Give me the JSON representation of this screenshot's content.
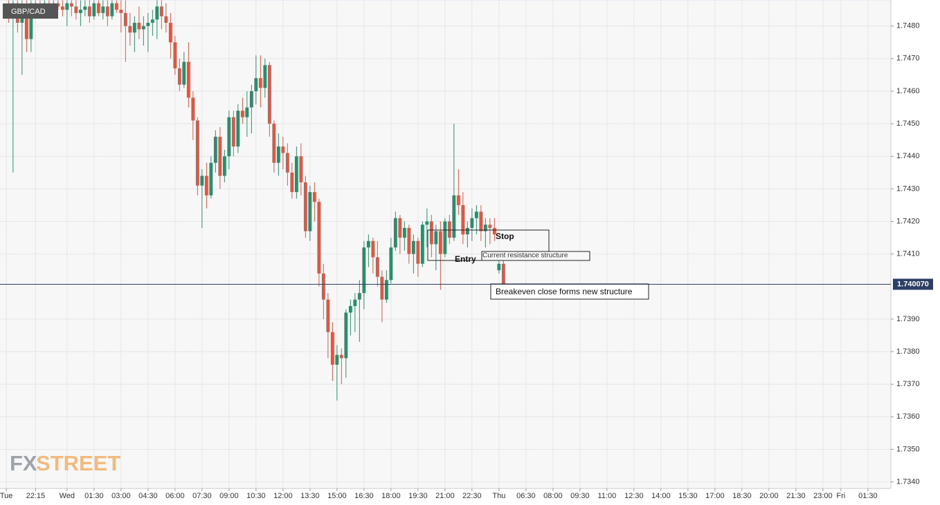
{
  "chart_data": {
    "type": "candlestick",
    "symbol": "GBP/CAD",
    "watermark": [
      "FX",
      "STREET"
    ],
    "up_color": "#2e8c6c",
    "down_color": "#d65a48",
    "grid": true,
    "ylim": [
      1.7338,
      1.7488
    ],
    "yticks": [
      {
        "value": 1.734,
        "label": "1.7340"
      },
      {
        "value": 1.735,
        "label": "1.7350"
      },
      {
        "value": 1.736,
        "label": "1.7360"
      },
      {
        "value": 1.737,
        "label": "1.7370"
      },
      {
        "value": 1.738,
        "label": "1.7380"
      },
      {
        "value": 1.739,
        "label": "1.7390"
      },
      {
        "value": 1.741,
        "label": "1.7410"
      },
      {
        "value": 1.742,
        "label": "1.7420"
      },
      {
        "value": 1.743,
        "label": "1.7430"
      },
      {
        "value": 1.744,
        "label": "1.7440"
      },
      {
        "value": 1.745,
        "label": "1.7450"
      },
      {
        "value": 1.746,
        "label": "1.7460"
      },
      {
        "value": 1.747,
        "label": "1.7470"
      },
      {
        "value": 1.748,
        "label": "1.7480"
      }
    ],
    "last_price": {
      "value": 1.74007,
      "label": "1.740070"
    },
    "xlim": [
      -14.9,
      183.1
    ],
    "xticks": [
      {
        "value": -13.5,
        "label": "Tue"
      },
      {
        "value": -7,
        "label": "22:15"
      },
      {
        "value": 0,
        "label": "Wed"
      },
      {
        "value": 6,
        "label": "01:30"
      },
      {
        "value": 12,
        "label": "03:00"
      },
      {
        "value": 18,
        "label": "04:30"
      },
      {
        "value": 24,
        "label": "06:00"
      },
      {
        "value": 30,
        "label": "07:30"
      },
      {
        "value": 36,
        "label": "09:00"
      },
      {
        "value": 42,
        "label": "10:30"
      },
      {
        "value": 48,
        "label": "12:00"
      },
      {
        "value": 54,
        "label": "13:30"
      },
      {
        "value": 60,
        "label": "15:00"
      },
      {
        "value": 66,
        "label": "16:30"
      },
      {
        "value": 72,
        "label": "18:00"
      },
      {
        "value": 78,
        "label": "19:30"
      },
      {
        "value": 84,
        "label": "21:00"
      },
      {
        "value": 90,
        "label": "22:30"
      },
      {
        "value": 96,
        "label": "Thu"
      },
      {
        "value": 102,
        "label": "06:30"
      },
      {
        "value": 108,
        "label": "08:00"
      },
      {
        "value": 114,
        "label": "09:30"
      },
      {
        "value": 120,
        "label": "11:00"
      },
      {
        "value": 126,
        "label": "12:30"
      },
      {
        "value": 132,
        "label": "14:00"
      },
      {
        "value": 138,
        "label": "15:30"
      },
      {
        "value": 144,
        "label": "17:00"
      },
      {
        "value": 150,
        "label": "18:30"
      },
      {
        "value": 156,
        "label": "20:00"
      },
      {
        "value": 162,
        "label": "21:30"
      },
      {
        "value": 168,
        "label": "23:00"
      },
      {
        "value": 172,
        "label": "Fri"
      },
      {
        "value": 178,
        "label": "01:30"
      }
    ],
    "annotations": [
      "Stop",
      "Entry",
      "Current resistance structure",
      "Breakeven close forms new structure"
    ],
    "x": [
      -13,
      -12,
      -11,
      -10,
      -9,
      -8,
      -7,
      -6,
      -5,
      -4,
      -3,
      -2,
      -1,
      0,
      1,
      2,
      3,
      4,
      5,
      6,
      7,
      8,
      9,
      10,
      11,
      12,
      13,
      14,
      15,
      16,
      17,
      18,
      19,
      20,
      21,
      22,
      23,
      24,
      25,
      26,
      27,
      28,
      29,
      30,
      31,
      32,
      33,
      34,
      35,
      36,
      37,
      38,
      39,
      40,
      41,
      42,
      43,
      44,
      45,
      46,
      47,
      48,
      49,
      50,
      51,
      52,
      53,
      54,
      55,
      56,
      57,
      58,
      59,
      60,
      61,
      62,
      63,
      64,
      65,
      66,
      67,
      68,
      69,
      70,
      71,
      72,
      73,
      74,
      75,
      76,
      77,
      78,
      79,
      80,
      81,
      82,
      83,
      84,
      85,
      86,
      87,
      88,
      89,
      90,
      91,
      92,
      93,
      94,
      95,
      96,
      97
    ],
    "candles": [
      [
        1.7486,
        1.7488,
        1.7481,
        1.7483
      ],
      [
        1.7484,
        1.7488,
        1.7435,
        1.7487
      ],
      [
        1.7487,
        1.7488,
        1.7478,
        1.7481
      ],
      [
        1.7481,
        1.7488,
        1.7465,
        1.7486
      ],
      [
        1.7486,
        1.7488,
        1.7472,
        1.7476
      ],
      [
        1.7476,
        1.7488,
        1.7472,
        1.7487
      ],
      [
        1.7487,
        1.7488,
        1.7484,
        1.7486
      ],
      [
        1.7486,
        1.7488,
        1.7483,
        1.7485
      ],
      [
        1.7485,
        1.7488,
        1.7484,
        1.7487
      ],
      [
        1.7487,
        1.7488,
        1.7485,
        1.7486
      ],
      [
        1.7486,
        1.7488,
        1.7484,
        1.7487
      ],
      [
        1.7487,
        1.7488,
        1.7485,
        1.7486
      ],
      [
        1.7486,
        1.7488,
        1.7483,
        1.7485
      ],
      [
        1.7485,
        1.7488,
        1.748,
        1.7487
      ],
      [
        1.7487,
        1.7488,
        1.7483,
        1.7486
      ],
      [
        1.7486,
        1.7488,
        1.7482,
        1.7484
      ],
      [
        1.7484,
        1.7488,
        1.748,
        1.7485
      ],
      [
        1.7485,
        1.7488,
        1.7483,
        1.7486
      ],
      [
        1.7486,
        1.7488,
        1.7481,
        1.7483
      ],
      [
        1.7483,
        1.7488,
        1.7482,
        1.7487
      ],
      [
        1.7487,
        1.7488,
        1.7483,
        1.7484
      ],
      [
        1.7484,
        1.7488,
        1.7482,
        1.7486
      ],
      [
        1.7486,
        1.7488,
        1.748,
        1.7483
      ],
      [
        1.7483,
        1.7488,
        1.7482,
        1.7487
      ],
      [
        1.7487,
        1.7488,
        1.7484,
        1.7485
      ],
      [
        1.7485,
        1.7488,
        1.7478,
        1.7484
      ],
      [
        1.7484,
        1.7488,
        1.7469,
        1.748
      ],
      [
        1.748,
        1.7484,
        1.7474,
        1.7478
      ],
      [
        1.7478,
        1.7483,
        1.7472,
        1.7481
      ],
      [
        1.7481,
        1.7486,
        1.7476,
        1.7479
      ],
      [
        1.7479,
        1.7483,
        1.7474,
        1.748
      ],
      [
        1.748,
        1.7484,
        1.7472,
        1.7481
      ],
      [
        1.7481,
        1.7485,
        1.7477,
        1.7482
      ],
      [
        1.7482,
        1.7488,
        1.7476,
        1.7486
      ],
      [
        1.7486,
        1.7488,
        1.7479,
        1.7483
      ],
      [
        1.7483,
        1.7487,
        1.7478,
        1.7481
      ],
      [
        1.7481,
        1.7484,
        1.747,
        1.7475
      ],
      [
        1.7475,
        1.7477,
        1.7465,
        1.7467
      ],
      [
        1.7467,
        1.747,
        1.746,
        1.7462
      ],
      [
        1.7462,
        1.7472,
        1.7461,
        1.7469
      ],
      [
        1.7469,
        1.7475,
        1.7455,
        1.7458
      ],
      [
        1.7458,
        1.746,
        1.7445,
        1.7451
      ],
      [
        1.7451,
        1.7452,
        1.7428,
        1.7431
      ],
      [
        1.7431,
        1.7436,
        1.7418,
        1.7434
      ],
      [
        1.7434,
        1.7438,
        1.7424,
        1.7428
      ],
      [
        1.7428,
        1.744,
        1.7427,
        1.7438
      ],
      [
        1.7438,
        1.7448,
        1.7435,
        1.7446
      ],
      [
        1.7446,
        1.7449,
        1.743,
        1.7434
      ],
      [
        1.7434,
        1.7442,
        1.7432,
        1.744
      ],
      [
        1.744,
        1.7454,
        1.7436,
        1.7452
      ],
      [
        1.7452,
        1.7454,
        1.744,
        1.7443
      ],
      [
        1.7443,
        1.7456,
        1.7441,
        1.7454
      ],
      [
        1.7454,
        1.7458,
        1.745,
        1.7452
      ],
      [
        1.7452,
        1.746,
        1.7446,
        1.7455
      ],
      [
        1.7455,
        1.7462,
        1.7447,
        1.746
      ],
      [
        1.746,
        1.7471,
        1.7456,
        1.7464
      ],
      [
        1.7464,
        1.7471,
        1.7455,
        1.7461
      ],
      [
        1.7461,
        1.747,
        1.7458,
        1.7468
      ],
      [
        1.7468,
        1.7469,
        1.7446,
        1.745
      ],
      [
        1.745,
        1.7451,
        1.7435,
        1.7438
      ],
      [
        1.7438,
        1.7447,
        1.7434,
        1.7443
      ],
      [
        1.7443,
        1.7446,
        1.7436,
        1.7441
      ],
      [
        1.7441,
        1.7444,
        1.7431,
        1.7435
      ],
      [
        1.7435,
        1.7438,
        1.7427,
        1.7429
      ],
      [
        1.7429,
        1.7443,
        1.7427,
        1.744
      ],
      [
        1.744,
        1.7444,
        1.7428,
        1.7432
      ],
      [
        1.7432,
        1.7434,
        1.7415,
        1.7417
      ],
      [
        1.7417,
        1.7431,
        1.7414,
        1.7429
      ],
      [
        1.7429,
        1.7432,
        1.742,
        1.7426
      ],
      [
        1.7426,
        1.7427,
        1.74,
        1.7404
      ],
      [
        1.7404,
        1.7407,
        1.739,
        1.7396
      ],
      [
        1.7396,
        1.7398,
        1.7378,
        1.7386
      ],
      [
        1.7386,
        1.7389,
        1.7371,
        1.7376
      ],
      [
        1.7376,
        1.7382,
        1.7365,
        1.7379
      ],
      [
        1.7379,
        1.7381,
        1.737,
        1.7378
      ],
      [
        1.7378,
        1.7393,
        1.7372,
        1.7392
      ],
      [
        1.7392,
        1.7396,
        1.7385,
        1.7394
      ],
      [
        1.7394,
        1.7398,
        1.7386,
        1.7396
      ],
      [
        1.7396,
        1.7402,
        1.7383,
        1.7398
      ],
      [
        1.7398,
        1.7414,
        1.7393,
        1.7412
      ],
      [
        1.7412,
        1.7416,
        1.7406,
        1.7414
      ],
      [
        1.7414,
        1.7415,
        1.7404,
        1.7409
      ],
      [
        1.7409,
        1.7414,
        1.74,
        1.7403
      ],
      [
        1.7403,
        1.7405,
        1.7389,
        1.7396
      ],
      [
        1.7396,
        1.7405,
        1.7395,
        1.7402
      ],
      [
        1.7402,
        1.7415,
        1.7401,
        1.7412
      ],
      [
        1.7412,
        1.7423,
        1.7411,
        1.7421
      ],
      [
        1.7421,
        1.7422,
        1.741,
        1.7415
      ],
      [
        1.7415,
        1.742,
        1.7411,
        1.7418
      ],
      [
        1.7418,
        1.7419,
        1.7407,
        1.741
      ],
      [
        1.741,
        1.7416,
        1.7404,
        1.7414
      ],
      [
        1.7414,
        1.7415,
        1.7403,
        1.7407
      ],
      [
        1.7407,
        1.742,
        1.7406,
        1.7419
      ],
      [
        1.7419,
        1.7424,
        1.7412,
        1.742
      ],
      [
        1.742,
        1.7422,
        1.7409,
        1.7413
      ],
      [
        1.7413,
        1.7419,
        1.7405,
        1.7417
      ],
      [
        1.7417,
        1.742,
        1.7399,
        1.741
      ],
      [
        1.741,
        1.7421,
        1.7409,
        1.742
      ],
      [
        1.742,
        1.7422,
        1.7413,
        1.7415
      ],
      [
        1.7415,
        1.745,
        1.7414,
        1.7428
      ],
      [
        1.7428,
        1.7436,
        1.7422,
        1.7425
      ],
      [
        1.7425,
        1.7429,
        1.7413,
        1.7416
      ],
      [
        1.7416,
        1.742,
        1.7412,
        1.7418
      ],
      [
        1.7418,
        1.7424,
        1.7414,
        1.7421
      ],
      [
        1.7421,
        1.7425,
        1.7416,
        1.7423
      ],
      [
        1.7423,
        1.7425,
        1.7414,
        1.7417
      ],
      [
        1.7417,
        1.7421,
        1.7412,
        1.7419
      ],
      [
        1.7419,
        1.7421,
        1.7413,
        1.7418
      ],
      [
        1.7418,
        1.7421,
        1.7414,
        1.7416
      ],
      [
        1.7405,
        1.7409,
        1.7404,
        1.7407
      ],
      [
        1.7407,
        1.7408,
        1.7398,
        1.74
      ]
    ]
  }
}
